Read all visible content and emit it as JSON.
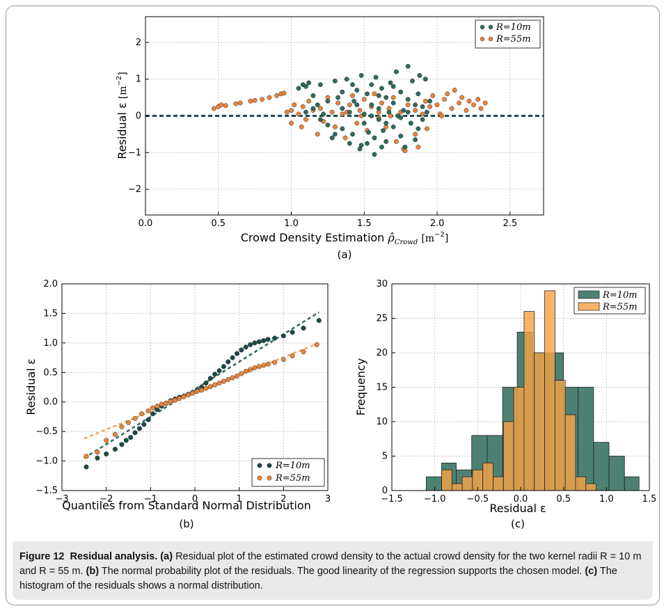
{
  "figure": {
    "caption_label": "Figure 12",
    "caption_title": "Residual analysis.",
    "caption_parts": [
      {
        "tag": "(a)",
        "text": "Residual plot of the estimated crowd density to the actual crowd density for the two kernel radii R = 10 m and R = 55 m."
      },
      {
        "tag": "(b)",
        "text": "The normal probability plot of the residuals. The good linearity of the regression supports the chosen model."
      },
      {
        "tag": "(c)",
        "text": "The histogram of the residuals shows a normal distribution."
      }
    ]
  },
  "colors": {
    "r10": "#2f6b5c",
    "r10_dark": "#1a4a4a",
    "r55": "#e8843a",
    "r55_hist": "#f5a447",
    "dash": "#1d4d55"
  },
  "chart_data": [
    {
      "id": "a",
      "type": "scatter",
      "sublabel": "(a)",
      "xlabel": "Crowd Density Estimation",
      "xlabel_math": "ρ̂",
      "xlabel_sub": "Crowd",
      "xlabel_unit": "[m",
      "xlabel_exp": "−2",
      "xlabel_close": "]",
      "ylabel": "Residual ε",
      "ylabel_unit": "[m",
      "ylabel_exp": "−2",
      "ylabel_close": "]",
      "xlim": [
        0.0,
        2.73
      ],
      "ylim": [
        -2.7,
        2.7
      ],
      "xticks": [
        "0.0",
        "0.5",
        "1.0",
        "1.5",
        "2.0",
        "2.5"
      ],
      "yticks": [
        "2",
        "1",
        "0",
        "−1",
        "−2"
      ],
      "legend": [
        "R = 10m",
        "R = 55m"
      ],
      "legend_position": "top-right",
      "grid": true,
      "reference_line_y": 0,
      "series": [
        {
          "name": "R = 10m",
          "points": [
            [
              1.05,
              0.75
            ],
            [
              1.08,
              0.85
            ],
            [
              1.1,
              0.8
            ],
            [
              1.12,
              0.9
            ],
            [
              1.15,
              0.55
            ],
            [
              1.18,
              0.3
            ],
            [
              1.2,
              0.85
            ],
            [
              1.22,
              0.05
            ],
            [
              1.25,
              -0.25
            ],
            [
              1.28,
              -0.6
            ],
            [
              1.3,
              0.95
            ],
            [
              1.32,
              0.5
            ],
            [
              1.35,
              0.2
            ],
            [
              1.35,
              -0.35
            ],
            [
              1.38,
              1.0
            ],
            [
              1.4,
              -0.75
            ],
            [
              1.42,
              -0.5
            ],
            [
              1.43,
              0.4
            ],
            [
              1.45,
              0.7
            ],
            [
              1.47,
              -0.9
            ],
            [
              1.48,
              1.1
            ],
            [
              1.5,
              0.05
            ],
            [
              1.5,
              -0.2
            ],
            [
              1.52,
              0.6
            ],
            [
              1.53,
              -0.45
            ],
            [
              1.55,
              0.85
            ],
            [
              1.55,
              0.3
            ],
            [
              1.57,
              -0.6
            ],
            [
              1.58,
              1.05
            ],
            [
              1.6,
              0.2
            ],
            [
              1.6,
              -0.1
            ],
            [
              1.62,
              0.75
            ],
            [
              1.63,
              -0.4
            ],
            [
              1.65,
              0.5
            ],
            [
              1.65,
              -0.7
            ],
            [
              1.67,
              0.1
            ],
            [
              1.68,
              0.9
            ],
            [
              1.7,
              -0.3
            ],
            [
              1.7,
              0.35
            ],
            [
              1.72,
              1.2
            ],
            [
              1.73,
              0.0
            ],
            [
              1.75,
              -0.55
            ],
            [
              1.75,
              0.65
            ],
            [
              1.77,
              0.15
            ],
            [
              1.78,
              -0.85
            ],
            [
              1.8,
              0.45
            ],
            [
              1.8,
              1.35
            ],
            [
              1.82,
              -0.2
            ],
            [
              1.83,
              0.95
            ],
            [
              1.85,
              0.3
            ],
            [
              1.85,
              -0.65
            ],
            [
              1.87,
              0.6
            ],
            [
              1.88,
              1.1
            ],
            [
              1.9,
              -0.1
            ],
            [
              1.9,
              0.25
            ],
            [
              1.92,
              1.0
            ],
            [
              1.95,
              0.4
            ],
            [
              1.57,
              -1.05
            ],
            [
              1.48,
              -0.8
            ],
            [
              1.3,
              -0.5
            ],
            [
              1.2,
              -0.1
            ],
            [
              1.15,
              0.2
            ],
            [
              1.4,
              0.1
            ],
            [
              1.45,
              0.3
            ],
            [
              1.6,
              0.55
            ],
            [
              1.65,
              -0.2
            ],
            [
              1.7,
              0.8
            ],
            [
              1.75,
              -0.05
            ],
            [
              1.55,
              0.0
            ],
            [
              1.35,
              0.65
            ],
            [
              1.25,
              0.4
            ],
            [
              1.1,
              0.1
            ],
            [
              1.52,
              -0.75
            ],
            [
              1.62,
              -0.85
            ],
            [
              1.8,
              0.1
            ],
            [
              1.87,
              -0.35
            ],
            [
              1.93,
              0.1
            ],
            [
              1.42,
              0.85
            ]
          ]
        },
        {
          "name": "R = 55m",
          "points": [
            [
              0.47,
              0.2
            ],
            [
              0.5,
              0.25
            ],
            [
              0.52,
              0.3
            ],
            [
              0.55,
              0.28
            ],
            [
              0.62,
              0.33
            ],
            [
              0.65,
              0.35
            ],
            [
              0.72,
              0.4
            ],
            [
              0.75,
              0.42
            ],
            [
              0.8,
              0.45
            ],
            [
              0.85,
              0.5
            ],
            [
              0.9,
              0.55
            ],
            [
              0.93,
              0.6
            ],
            [
              0.95,
              0.62
            ],
            [
              0.97,
              0.1
            ],
            [
              1.0,
              -0.2
            ],
            [
              1.0,
              0.15
            ],
            [
              1.02,
              0.3
            ],
            [
              1.05,
              0.05
            ],
            [
              1.07,
              -0.3
            ],
            [
              1.08,
              0.25
            ],
            [
              1.1,
              -0.1
            ],
            [
              1.12,
              0.4
            ],
            [
              1.15,
              0.15
            ],
            [
              1.18,
              -0.5
            ],
            [
              1.2,
              0.2
            ],
            [
              1.22,
              -0.15
            ],
            [
              1.25,
              0.5
            ],
            [
              1.28,
              0.1
            ],
            [
              1.3,
              -0.3
            ],
            [
              1.32,
              0.35
            ],
            [
              1.35,
              0.05
            ],
            [
              1.37,
              -0.6
            ],
            [
              1.4,
              0.3
            ],
            [
              1.42,
              0.55
            ],
            [
              1.45,
              -0.2
            ],
            [
              1.47,
              0.15
            ],
            [
              1.5,
              0.45
            ],
            [
              1.52,
              -0.4
            ],
            [
              1.55,
              0.25
            ],
            [
              1.57,
              0.6
            ],
            [
              1.6,
              -0.05
            ],
            [
              1.62,
              0.35
            ],
            [
              1.65,
              -0.3
            ],
            [
              1.67,
              0.2
            ],
            [
              1.7,
              0.5
            ],
            [
              1.72,
              -0.7
            ],
            [
              1.75,
              0.1
            ],
            [
              1.77,
              -0.9
            ],
            [
              1.8,
              0.3
            ],
            [
              1.82,
              -0.2
            ],
            [
              1.85,
              0.15
            ],
            [
              1.87,
              -0.85
            ],
            [
              1.9,
              0.05
            ],
            [
              1.92,
              0.4
            ],
            [
              1.95,
              0.25
            ],
            [
              1.97,
              0.55
            ],
            [
              2.0,
              0.3
            ],
            [
              2.02,
              0.05
            ],
            [
              2.05,
              0.45
            ],
            [
              2.07,
              0.6
            ],
            [
              2.1,
              0.2
            ],
            [
              2.12,
              0.7
            ],
            [
              2.15,
              0.35
            ],
            [
              2.17,
              0.5
            ],
            [
              2.2,
              0.15
            ],
            [
              2.22,
              0.4
            ],
            [
              2.25,
              0.3
            ],
            [
              2.28,
              0.45
            ],
            [
              2.3,
              0.2
            ],
            [
              2.33,
              0.35
            ],
            [
              1.78,
              -0.95
            ],
            [
              1.85,
              -0.5
            ],
            [
              1.93,
              -0.35
            ],
            [
              2.03,
              0.0
            ],
            [
              1.6,
              0.1
            ],
            [
              1.68,
              0.0
            ],
            [
              1.48,
              0.0
            ],
            [
              1.38,
              0.1
            ]
          ]
        }
      ]
    },
    {
      "id": "b",
      "type": "scatter",
      "sublabel": "(b)",
      "xlabel": "Quantiles from Standard Normal Distribution",
      "ylabel": "Residual ε",
      "xlim": [
        -3,
        3
      ],
      "ylim": [
        -1.5,
        2.0
      ],
      "xticks": [
        "−3",
        "−2",
        "−1",
        "0",
        "1",
        "2",
        "3"
      ],
      "yticks": [
        "2.0",
        "1.5",
        "1.0",
        "0.5",
        "0.0",
        "−0.5",
        "−1.0",
        "−1.5"
      ],
      "legend": [
        "R = 10m",
        "R = 55m"
      ],
      "legend_position": "lower-right",
      "grid": true,
      "fit_lines": [
        {
          "name": "R = 10m",
          "x": [
            -2.5,
            2.8
          ],
          "y": [
            -0.95,
            1.52
          ]
        },
        {
          "name": "R = 55m",
          "x": [
            -2.5,
            2.8
          ],
          "y": [
            -0.62,
            1.0
          ]
        }
      ],
      "series": [
        {
          "name": "R = 10m",
          "x": [
            -2.45,
            -2.2,
            -2.0,
            -1.8,
            -1.65,
            -1.55,
            -1.45,
            -1.35,
            -1.25,
            -1.15,
            -1.05,
            -0.95,
            -0.85,
            -0.75,
            -0.65,
            -0.55,
            -0.45,
            -0.35,
            -0.25,
            -0.15,
            -0.05,
            0.05,
            0.15,
            0.25,
            0.35,
            0.45,
            0.55,
            0.65,
            0.75,
            0.85,
            0.95,
            1.05,
            1.15,
            1.25,
            1.35,
            1.45,
            1.55,
            1.65,
            1.8,
            2.0,
            2.2,
            2.45,
            2.8
          ],
          "y": [
            -1.1,
            -0.95,
            -0.88,
            -0.8,
            -0.72,
            -0.65,
            -0.6,
            -0.52,
            -0.45,
            -0.38,
            -0.3,
            -0.2,
            -0.13,
            -0.07,
            -0.02,
            0.02,
            0.05,
            0.08,
            0.1,
            0.13,
            0.16,
            0.2,
            0.25,
            0.32,
            0.4,
            0.47,
            0.53,
            0.6,
            0.68,
            0.75,
            0.82,
            0.88,
            0.93,
            0.97,
            1.0,
            1.02,
            1.04,
            1.06,
            1.08,
            1.12,
            1.18,
            1.25,
            1.38
          ]
        },
        {
          "name": "R = 55m",
          "x": [
            -2.45,
            -2.2,
            -2.0,
            -1.8,
            -1.65,
            -1.5,
            -1.35,
            -1.2,
            -1.05,
            -0.95,
            -0.85,
            -0.75,
            -0.65,
            -0.55,
            -0.45,
            -0.35,
            -0.25,
            -0.15,
            -0.05,
            0.05,
            0.15,
            0.25,
            0.35,
            0.45,
            0.55,
            0.65,
            0.75,
            0.85,
            0.95,
            1.05,
            1.15,
            1.25,
            1.35,
            1.45,
            1.55,
            1.65,
            1.8,
            2.0,
            2.2,
            2.45,
            2.75
          ],
          "y": [
            -0.92,
            -0.85,
            -0.65,
            -0.55,
            -0.42,
            -0.35,
            -0.28,
            -0.2,
            -0.15,
            -0.1,
            -0.07,
            -0.04,
            -0.02,
            0.01,
            0.03,
            0.06,
            0.09,
            0.12,
            0.15,
            0.18,
            0.2,
            0.23,
            0.26,
            0.29,
            0.32,
            0.35,
            0.38,
            0.41,
            0.44,
            0.48,
            0.52,
            0.55,
            0.58,
            0.6,
            0.62,
            0.64,
            0.67,
            0.72,
            0.78,
            0.85,
            0.97
          ]
        }
      ]
    },
    {
      "id": "c",
      "type": "bar",
      "sublabel": "(c)",
      "xlabel": "Residual ε",
      "ylabel": "Frequency",
      "xlim": [
        -1.5,
        1.5
      ],
      "ylim": [
        0,
        30
      ],
      "xticks": [
        "−1.5",
        "−1.0",
        "−0.5",
        "0.0",
        "0.5",
        "1.0",
        "1.5"
      ],
      "yticks": [
        "30",
        "25",
        "20",
        "15",
        "10",
        "5",
        "0"
      ],
      "legend": [
        "R = 10m",
        "R = 55m"
      ],
      "legend_position": "top-right",
      "grid": true,
      "series": [
        {
          "name": "R = 10m",
          "bin_edges": [
            -1.1,
            -0.92,
            -0.75,
            -0.57,
            -0.39,
            -0.21,
            -0.04,
            0.14,
            0.32,
            0.5,
            0.67,
            0.85,
            1.03,
            1.21,
            1.38
          ],
          "counts": [
            2,
            4,
            3,
            8,
            8,
            15,
            23,
            20,
            20,
            15,
            15,
            7,
            5,
            2
          ]
        },
        {
          "name": "R = 55m",
          "bin_edges": [
            -0.92,
            -0.8,
            -0.68,
            -0.56,
            -0.44,
            -0.32,
            -0.2,
            -0.08,
            0.04,
            0.16,
            0.28,
            0.4,
            0.52,
            0.64,
            0.76,
            0.88
          ],
          "counts": [
            3,
            1,
            2,
            3,
            4,
            2,
            10,
            15,
            26,
            20,
            29,
            16,
            11,
            2,
            1
          ]
        }
      ]
    }
  ]
}
